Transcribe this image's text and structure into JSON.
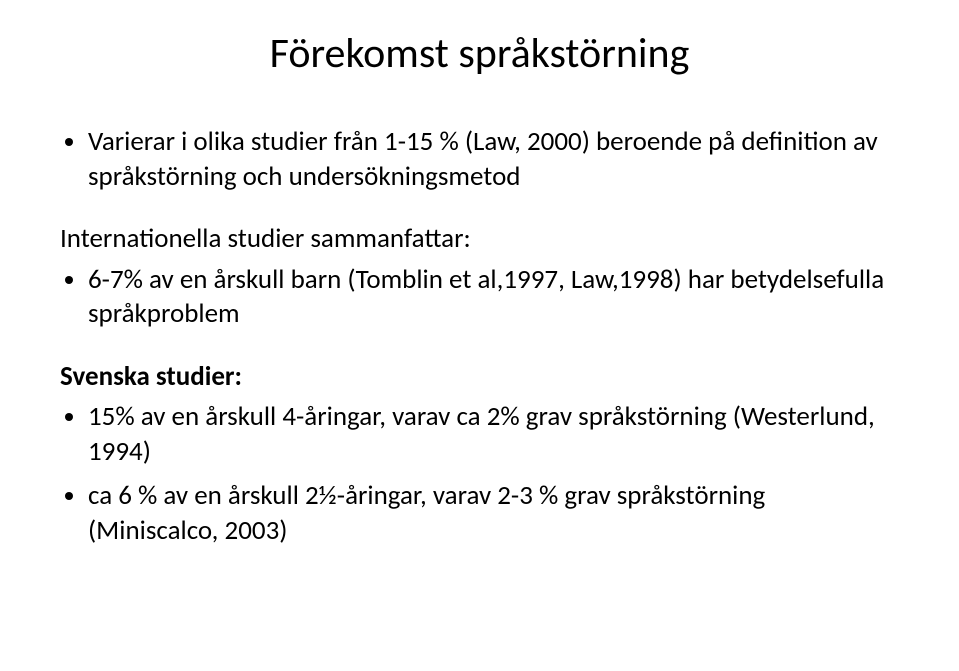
{
  "title": "Förekomst språkstörning",
  "intro_bullets": [
    "Varierar i olika studier från 1-15 % (Law, 2000) beroende på definition av språkstörning och undersökningsmetod"
  ],
  "section_label": "Internationella studier sammanfattar:",
  "intl_bullets": [
    "6-7% av en årskull barn (Tomblin et al,1997, Law,1998) har betydelsefulla språkproblem"
  ],
  "swedish_heading": "Svenska studier:",
  "swedish_bullets": [
    "15% av en årskull 4-åringar, varav ca 2% grav språkstörning (Westerlund, 1994)",
    "ca 6 % av en årskull 2½-åringar, varav 2-3 % grav språkstörning (Miniscalco, 2003)"
  ]
}
